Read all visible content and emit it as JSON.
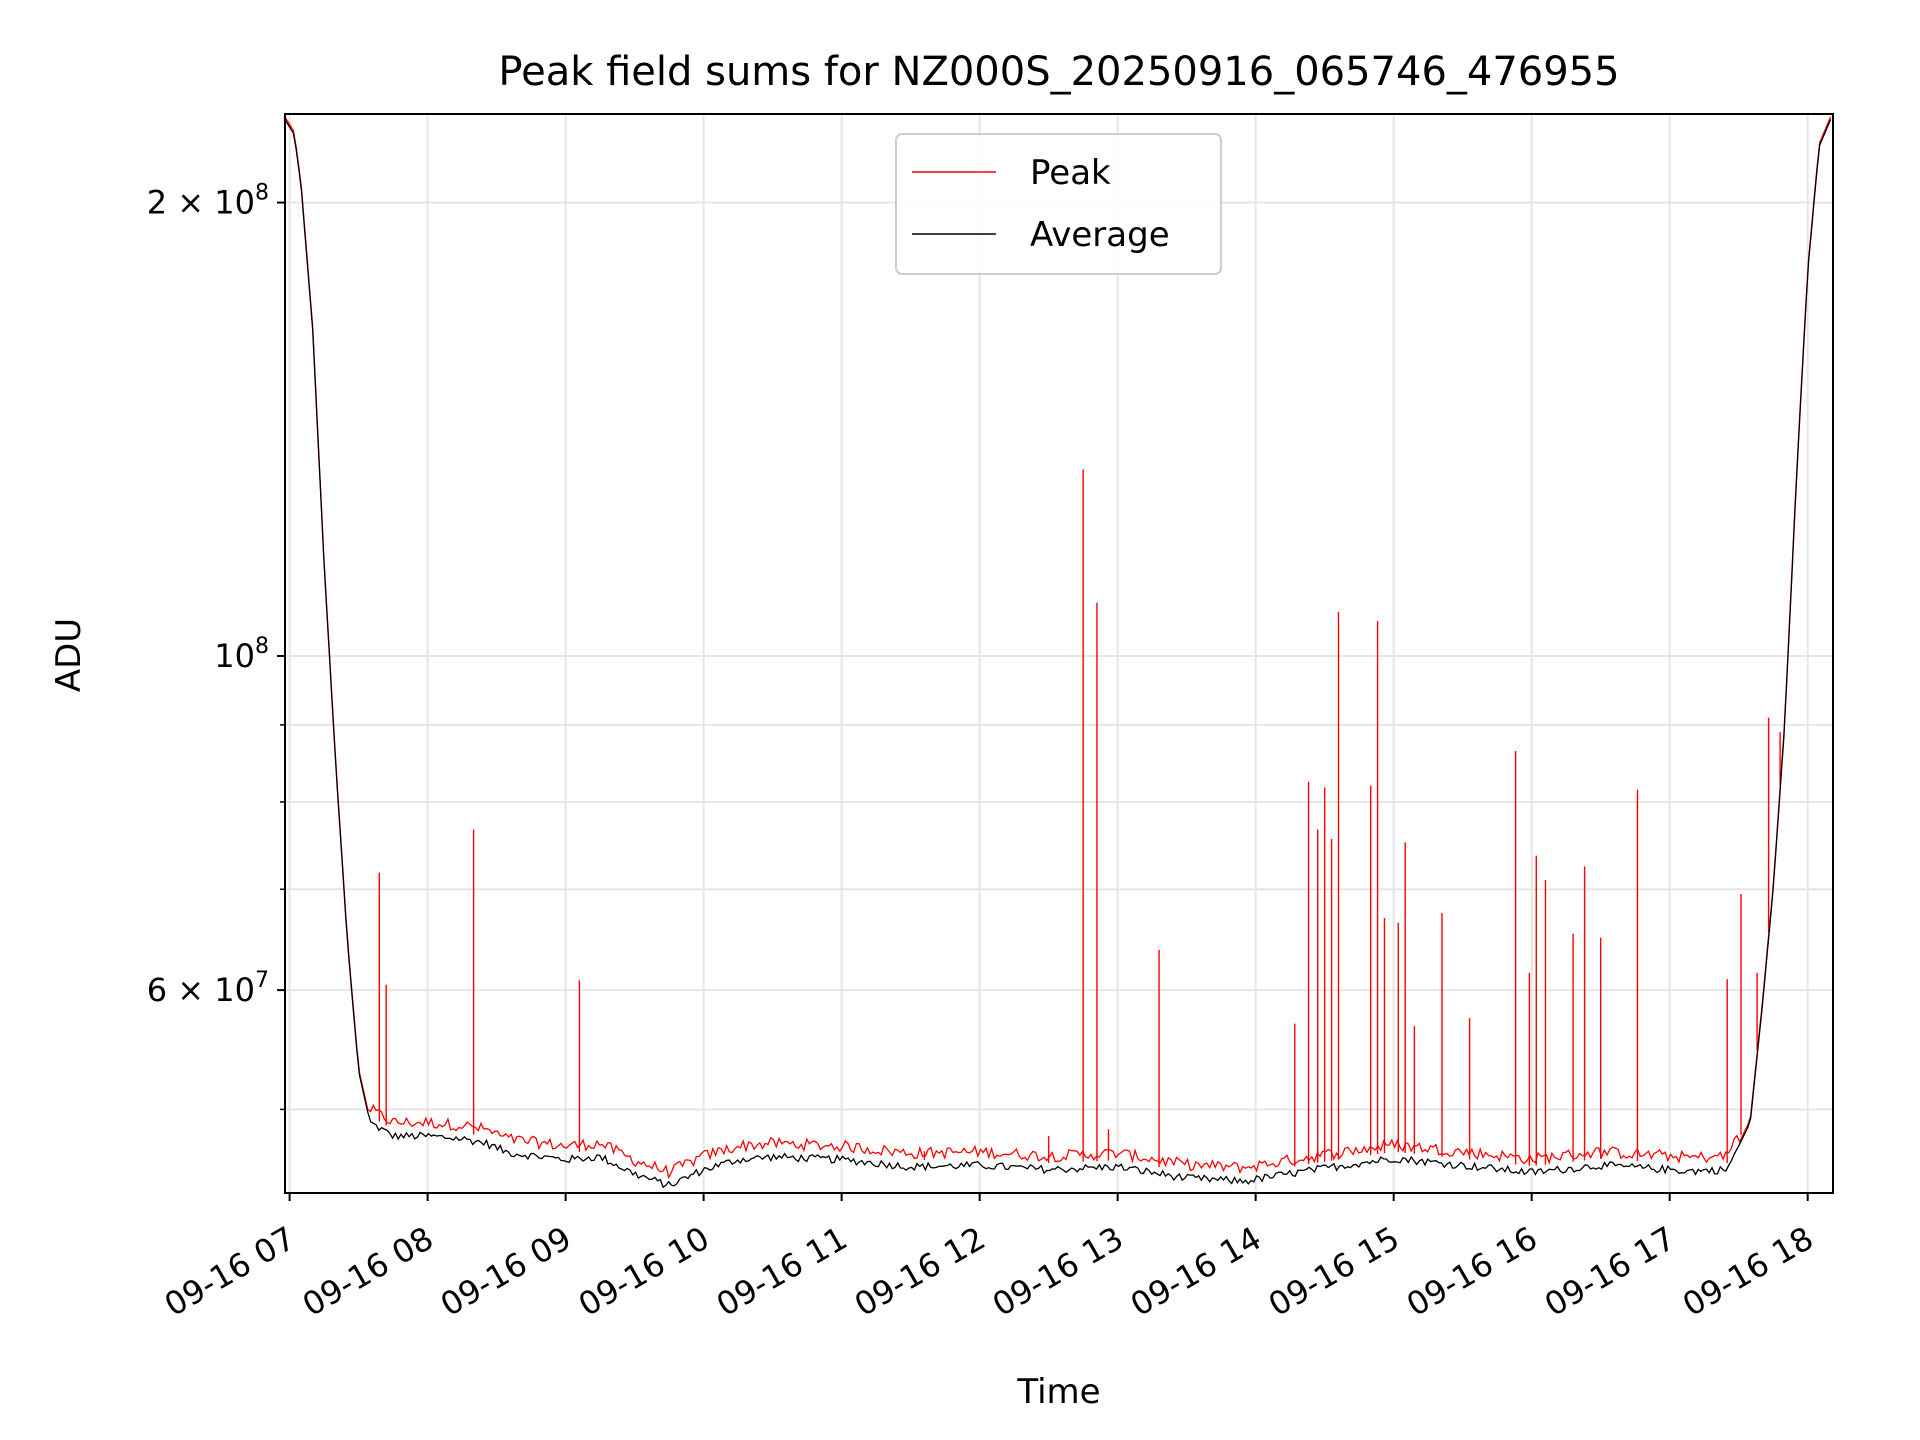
{
  "chart_data": {
    "type": "line",
    "title": "Peak field sums for NZ000S_20250916_065746_476955",
    "xlabel": "Time",
    "ylabel": "ADU",
    "yscale": "log",
    "xlim": [
      "09-16 06:58",
      "09-16 18:11"
    ],
    "ylim": [
      44000000,
      229000000
    ],
    "grid": true,
    "legend_position": "upper center",
    "x_ticks": [
      "09-16 07",
      "09-16 08",
      "09-16 09",
      "09-16 10",
      "09-16 11",
      "09-16 12",
      "09-16 13",
      "09-16 14",
      "09-16 15",
      "09-16 16",
      "09-16 17",
      "09-16 18"
    ],
    "y_ticks": [
      {
        "value": 200000000,
        "label_base": "2 × 10",
        "label_exp": "8"
      },
      {
        "value": 100000000,
        "label_base": "10",
        "label_exp": "8"
      },
      {
        "value": 60000000,
        "label_base": "6 × 10",
        "label_exp": "7"
      }
    ],
    "y_minor_ticks": [
      50000000,
      70000000,
      80000000,
      90000000
    ],
    "series": [
      {
        "name": "Average",
        "color": "#000000",
        "points": [
          [
            "06:58",
            227000000
          ],
          [
            "07:02",
            222000000
          ],
          [
            "07:05",
            205000000
          ],
          [
            "07:10",
            165000000
          ],
          [
            "07:15",
            115000000
          ],
          [
            "07:20",
            85000000
          ],
          [
            "07:25",
            65000000
          ],
          [
            "07:30",
            53000000
          ],
          [
            "07:35",
            49000000
          ],
          [
            "07:45",
            48000000
          ],
          [
            "08:00",
            48000000
          ],
          [
            "08:15",
            47800000
          ],
          [
            "08:25",
            47500000
          ],
          [
            "08:35",
            46800000
          ],
          [
            "09:00",
            46300000
          ],
          [
            "09:15",
            46500000
          ],
          [
            "09:30",
            45300000
          ],
          [
            "09:45",
            44500000
          ],
          [
            "10:00",
            45600000
          ],
          [
            "10:15",
            46300000
          ],
          [
            "10:30",
            46500000
          ],
          [
            "11:00",
            46300000
          ],
          [
            "11:30",
            45800000
          ],
          [
            "12:00",
            45900000
          ],
          [
            "12:30",
            45600000
          ],
          [
            "13:00",
            45800000
          ],
          [
            "13:30",
            45000000
          ],
          [
            "13:55",
            44800000
          ],
          [
            "14:30",
            45700000
          ],
          [
            "15:00",
            46400000
          ],
          [
            "15:30",
            45900000
          ],
          [
            "16:00",
            45400000
          ],
          [
            "16:30",
            45900000
          ],
          [
            "17:10",
            45500000
          ],
          [
            "17:25",
            45600000
          ],
          [
            "17:35",
            49000000
          ],
          [
            "17:40",
            58000000
          ],
          [
            "17:45",
            70000000
          ],
          [
            "17:50",
            90000000
          ],
          [
            "17:55",
            130000000
          ],
          [
            "18:00",
            180000000
          ],
          [
            "18:05",
            218000000
          ],
          [
            "18:11",
            229000000
          ]
        ]
      },
      {
        "name": "Peak",
        "color": "#ff0000",
        "spikes": [
          [
            "07:39",
            71800000
          ],
          [
            "07:42",
            60500000
          ],
          [
            "08:20",
            76700000
          ],
          [
            "09:06",
            60900000
          ],
          [
            "11:36",
            46900000
          ],
          [
            "12:30",
            48000000
          ],
          [
            "12:45",
            133000000
          ],
          [
            "12:51",
            108500000
          ],
          [
            "12:56",
            48500000
          ],
          [
            "13:18",
            63800000
          ],
          [
            "14:17",
            57000000
          ],
          [
            "14:23",
            82500000
          ],
          [
            "14:27",
            76700000
          ],
          [
            "14:30",
            81800000
          ],
          [
            "14:33",
            75600000
          ],
          [
            "14:36",
            107000000
          ],
          [
            "14:50",
            82000000
          ],
          [
            "14:53",
            105500000
          ],
          [
            "14:56",
            67000000
          ],
          [
            "15:02",
            66500000
          ],
          [
            "15:05",
            75200000
          ],
          [
            "15:09",
            56800000
          ],
          [
            "15:21",
            67500000
          ],
          [
            "15:33",
            57500000
          ],
          [
            "15:53",
            86500000
          ],
          [
            "15:59",
            61600000
          ],
          [
            "16:02",
            73700000
          ],
          [
            "16:06",
            71000000
          ],
          [
            "16:18",
            65400000
          ],
          [
            "16:23",
            72500000
          ],
          [
            "16:30",
            65000000
          ],
          [
            "16:46",
            81500000
          ],
          [
            "17:25",
            61000000
          ],
          [
            "17:31",
            69500000
          ],
          [
            "17:38",
            61600000
          ],
          [
            "17:43",
            91000000
          ],
          [
            "17:48",
            89000000
          ]
        ]
      }
    ]
  }
}
